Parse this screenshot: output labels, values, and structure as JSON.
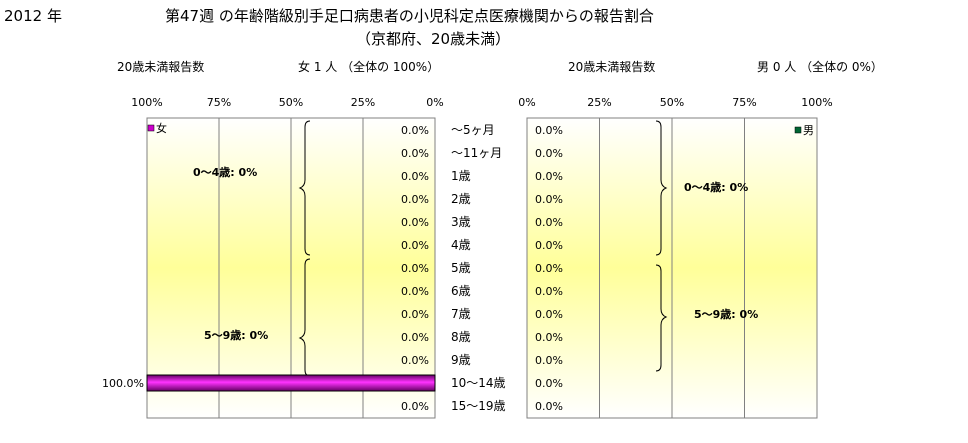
{
  "header": {
    "year": "2012 年",
    "title_line1": "第47週 の年齢階級別手足口病患者の小児科定点医療機関からの報告割合",
    "title_line2": "（京都府、20歳未満）"
  },
  "female_panel": {
    "count_label": "20歳未満報告数",
    "summary": "女  1 人 （全体の  100%）",
    "legend_label": "女",
    "color": "#cc00cc",
    "group_labels": [
      "0〜4歳:  0%",
      "5〜9歳:  0%"
    ]
  },
  "male_panel": {
    "count_label": "20歳未満報告数",
    "summary": "男  0 人 （全体の   0%）",
    "legend_label": "男",
    "color": "#006633",
    "group_labels": [
      "0〜4歳:  0%",
      "5〜9歳:  0%"
    ]
  },
  "chart_data": [
    {
      "type": "bar",
      "orientation": "horizontal",
      "direction": "right-to-left",
      "categories": [
        "〜5ヶ月",
        "〜11ヶ月",
        "1歳",
        "2歳",
        "3歳",
        "4歳",
        "5歳",
        "6歳",
        "7歳",
        "8歳",
        "9歳",
        "10〜14歳",
        "15〜19歳"
      ],
      "series": [
        {
          "name": "女",
          "values": [
            0,
            0,
            0,
            0,
            0,
            0,
            0,
            0,
            0,
            0,
            0,
            100.0,
            0
          ]
        }
      ],
      "value_labels": [
        "0.0%",
        "0.0%",
        "0.0%",
        "0.0%",
        "0.0%",
        "0.0%",
        "0.0%",
        "0.0%",
        "0.0%",
        "0.0%",
        "0.0%",
        "100.0%",
        "0.0%"
      ],
      "xticks": [
        "100%",
        "75%",
        "50%",
        "25%",
        "0%"
      ],
      "xlim": [
        0,
        100
      ],
      "grid": true,
      "legend": "top-left"
    },
    {
      "type": "bar",
      "orientation": "horizontal",
      "direction": "left-to-right",
      "categories": [
        "〜5ヶ月",
        "〜11ヶ月",
        "1歳",
        "2歳",
        "3歳",
        "4歳",
        "5歳",
        "6歳",
        "7歳",
        "8歳",
        "9歳",
        "10〜14歳",
        "15〜19歳"
      ],
      "series": [
        {
          "name": "男",
          "values": [
            0,
            0,
            0,
            0,
            0,
            0,
            0,
            0,
            0,
            0,
            0,
            0,
            0
          ]
        }
      ],
      "value_labels": [
        "0.0%",
        "0.0%",
        "0.0%",
        "0.0%",
        "0.0%",
        "0.0%",
        "0.0%",
        "0.0%",
        "0.0%",
        "0.0%",
        "0.0%",
        "0.0%",
        "0.0%"
      ],
      "xticks": [
        "0%",
        "25%",
        "50%",
        "75%",
        "100%"
      ],
      "xlim": [
        0,
        100
      ],
      "grid": true,
      "legend": "top-right"
    }
  ]
}
